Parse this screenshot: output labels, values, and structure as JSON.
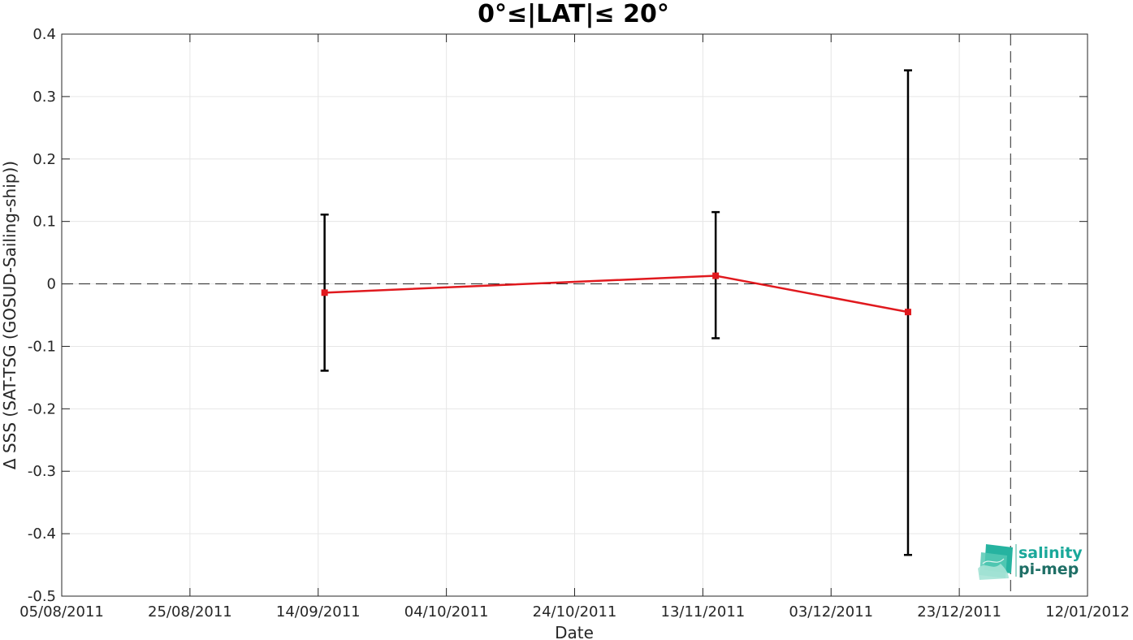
{
  "chart_data": {
    "type": "line",
    "title": "0°≤|LAT|≤ 20°",
    "xlabel": "Date",
    "ylabel": "Δ SSS (SAT-TSG (GOSUD-Sailing-ship))",
    "x_type": "date",
    "xlim": [
      "2011-08-05",
      "2012-01-12"
    ],
    "ylim": [
      -0.5,
      0.4
    ],
    "x_ticks": [
      "2011-08-05",
      "2011-08-25",
      "2011-09-14",
      "2011-10-04",
      "2011-10-24",
      "2011-11-13",
      "2011-12-03",
      "2011-12-23",
      "2012-01-12"
    ],
    "x_tick_labels": [
      "05/08/2011",
      "25/08/2011",
      "14/09/2011",
      "04/10/2011",
      "24/10/2011",
      "13/11/2011",
      "03/12/2011",
      "23/12/2011",
      "12/01/2012"
    ],
    "y_ticks": [
      -0.5,
      -0.4,
      -0.3,
      -0.2,
      -0.1,
      0,
      0.1,
      0.2,
      0.3,
      0.4
    ],
    "y_tick_labels": [
      "-0.5",
      "-0.4",
      "-0.3",
      "-0.2",
      "-0.1",
      "0",
      "0.1",
      "0.2",
      "0.3",
      "0.4"
    ],
    "grid": true,
    "series": [
      {
        "x": [
          "2011-09-15",
          "2011-11-15",
          "2011-12-15"
        ],
        "y": [
          -0.014,
          0.013,
          -0.045
        ],
        "err_low": [
          -0.139,
          -0.087,
          -0.434
        ],
        "err_high": [
          0.111,
          0.115,
          0.342
        ],
        "color": "#e0191e",
        "error_color": "#000000"
      }
    ],
    "reference_lines": [
      {
        "orientation": "horizontal",
        "value": 0,
        "style": "dashed"
      },
      {
        "orientation": "vertical",
        "value": "2011-12-31",
        "style": "dashed"
      }
    ]
  },
  "logo": {
    "line1": "salinity",
    "line2": "pi-mep",
    "color1": "#1aa89a",
    "color2": "#1f6f66"
  }
}
